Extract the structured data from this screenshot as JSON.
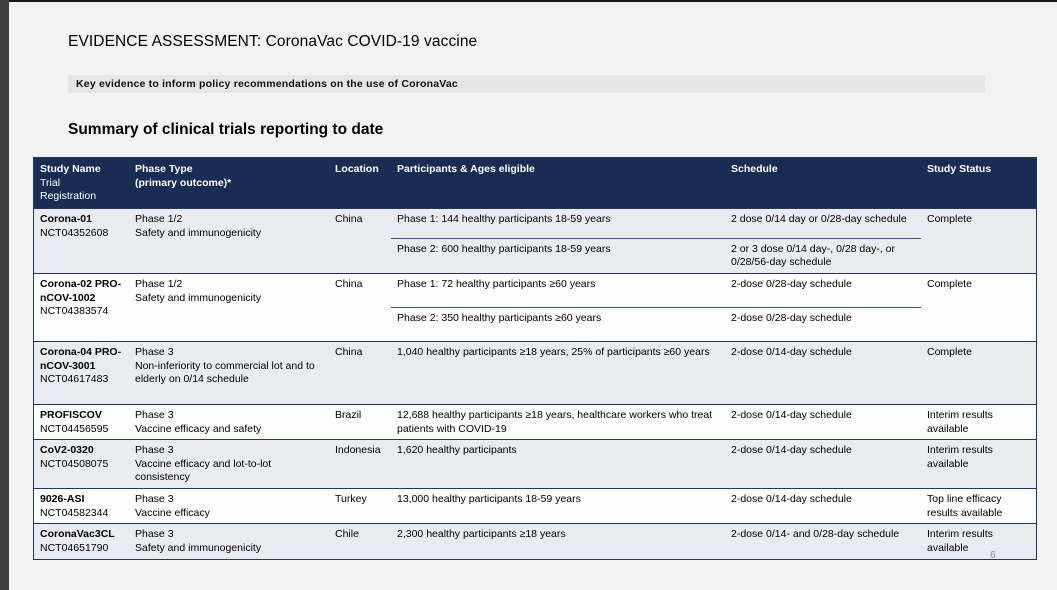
{
  "slide": {
    "title": "EVIDENCE ASSESSMENT: CoronaVac COVID-19 vaccine",
    "subtitle": "Key evidence to inform policy recommendations on the use of CoronaVac",
    "section_heading": "Summary of clinical trials reporting to date",
    "page_number": "6"
  },
  "colors": {
    "header_bg": "#182c54",
    "border_navy": "#1f3864",
    "sub_divider": "#2e5a8f",
    "row_shaded": "#e9ebf0",
    "slide_bg": "#f2f2f2"
  },
  "table": {
    "columns": [
      {
        "label": "Study Name",
        "sublabel": "Trial\nRegistration"
      },
      {
        "label": "Phase Type\n(primary outcome)*",
        "sublabel": ""
      },
      {
        "label": "Location",
        "sublabel": ""
      },
      {
        "label": "Participants & Ages eligible",
        "sublabel": ""
      },
      {
        "label": "Schedule",
        "sublabel": ""
      },
      {
        "label": "Study Status",
        "sublabel": ""
      }
    ],
    "rows": [
      {
        "study_name": "Corona-01",
        "registration": "NCT04352608",
        "phase": "Phase 1/2",
        "outcome": "Safety and immunogenicity",
        "location": "China",
        "shaded": true,
        "sub_rows": [
          {
            "participants": "Phase 1: 144 healthy participants 18-59 years",
            "schedule": "2 dose 0/14 day or 0/28-day schedule"
          },
          {
            "participants": "Phase 2: 600 healthy participants 18-59 years",
            "schedule": "2 or 3 dose 0/14 day-, 0/28 day-, or 0/28/56-day schedule"
          }
        ],
        "status": "Complete"
      },
      {
        "study_name": "Corona-02 PRO-nCOV-1002",
        "registration": "NCT04383574",
        "phase": "Phase 1/2",
        "outcome": "Safety and immunogenicity",
        "location": "China",
        "shaded": false,
        "sub_rows": [
          {
            "participants": "Phase 1: 72 healthy participants ≥60 years",
            "schedule": "2-dose 0/28-day schedule"
          },
          {
            "participants": "Phase 2: 350 healthy participants ≥60 years",
            "schedule": "2-dose 0/28-day schedule"
          }
        ],
        "status": "Complete"
      },
      {
        "study_name": "Corona-04 PRO-nCOV-3001",
        "registration": "NCT04617483",
        "phase": "Phase 3",
        "outcome": "Non-inferiority to commercial lot and to elderly on 0/14 schedule",
        "location": "China",
        "shaded": true,
        "sub_rows": [
          {
            "participants": "1,040 healthy participants ≥18 years,  25% of participants ≥60 years",
            "schedule": "2-dose 0/14-day schedule"
          }
        ],
        "status": "Complete"
      },
      {
        "study_name": "PROFISCOV",
        "registration": "NCT04456595",
        "phase": "Phase 3",
        "outcome": "Vaccine efficacy and safety",
        "location": "Brazil",
        "shaded": false,
        "sub_rows": [
          {
            "participants": "12,688 healthy participants ≥18 years, healthcare workers who treat patients with COVID-19",
            "schedule": "2-dose 0/14-day schedule"
          }
        ],
        "status": "Interim results available"
      },
      {
        "study_name": "CoV2-0320",
        "registration": "NCT04508075",
        "phase": "Phase 3",
        "outcome": "Vaccine efficacy and lot-to-lot consistency",
        "location": "Indonesia",
        "shaded": true,
        "sub_rows": [
          {
            "participants": "1,620 healthy participants",
            "schedule": "2-dose 0/14-day schedule"
          }
        ],
        "status": "Interim results available"
      },
      {
        "study_name": "9026-ASI",
        "registration": "NCT04582344",
        "phase": "Phase 3",
        "outcome": "Vaccine efficacy",
        "location": "Turkey",
        "shaded": false,
        "sub_rows": [
          {
            "participants": "13,000 healthy participants 18-59 years",
            "schedule": "2-dose 0/14-day schedule"
          }
        ],
        "status": "Top line efficacy results available"
      },
      {
        "study_name": "CoronaVac3CL",
        "registration": "NCT04651790",
        "phase": "Phase 3",
        "outcome": "Safety and immunogenicity",
        "location": "Chile",
        "shaded": true,
        "sub_rows": [
          {
            "participants": "2,300 healthy participants ≥18 years",
            "schedule": "2-dose 0/14- and 0/28-day schedule"
          }
        ],
        "status": "Interim results available"
      }
    ]
  }
}
